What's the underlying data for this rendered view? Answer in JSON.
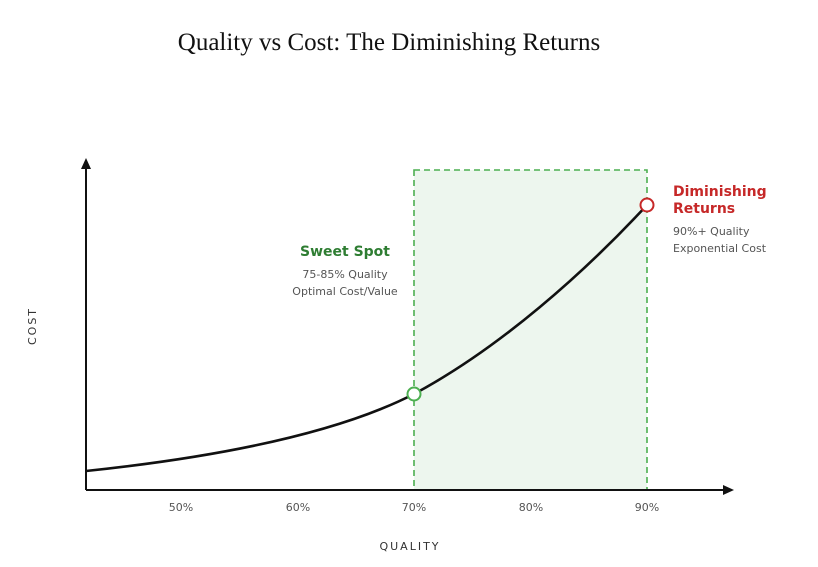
{
  "header": {
    "title": "Quality vs Cost: The Diminishing Returns"
  },
  "axes": {
    "x_label": "QUALITY",
    "y_label": "COST",
    "x_ticks": [
      "50%",
      "60%",
      "70%",
      "80%",
      "90%"
    ]
  },
  "annotations": {
    "sweet_spot": {
      "title": "Sweet Spot",
      "lines": [
        "75-85% Quality",
        "Optimal Cost/Value"
      ]
    },
    "diminishing": {
      "title_lines": [
        "Diminishing",
        "Returns"
      ],
      "lines": [
        "90%+ Quality",
        "Exponential Cost"
      ]
    }
  }
}
